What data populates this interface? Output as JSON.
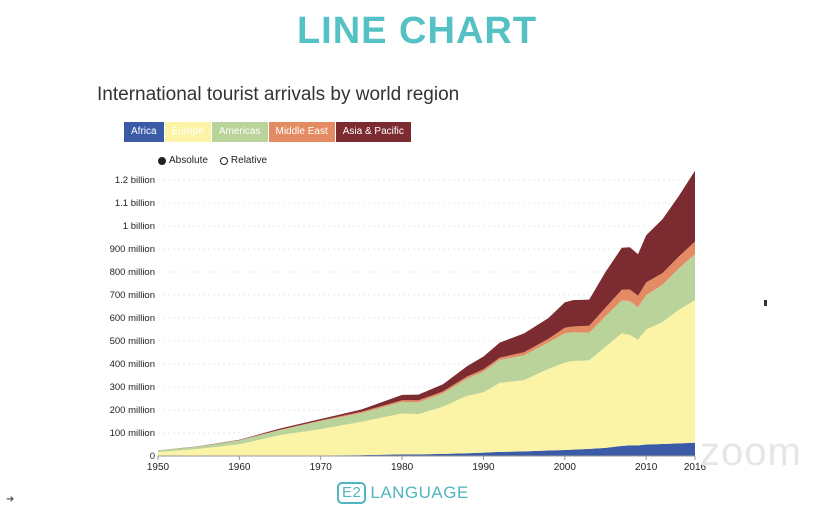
{
  "slide": {
    "title": "LINE CHART",
    "footer_mark": "E2",
    "footer_text": "LANGUAGE",
    "watermark": "zoom"
  },
  "controls": {
    "absolute_label": "Absolute",
    "relative_label": "Relative",
    "selected_mode": "Absolute"
  },
  "chart_data": {
    "type": "area",
    "stacked": true,
    "title": "International tourist arrivals by world region",
    "legend_position": "top-left",
    "grid": true,
    "x": [
      1950,
      1955,
      1960,
      1965,
      1970,
      1975,
      1980,
      1982,
      1985,
      1988,
      1990,
      1992,
      1995,
      1998,
      2000,
      2001,
      2003,
      2005,
      2007,
      2008,
      2009,
      2010,
      2012,
      2014,
      2016
    ],
    "xlim": [
      1950,
      2016
    ],
    "ylim": [
      0,
      1200000000
    ],
    "x_ticks": [
      {
        "value": 1950,
        "label": "1950"
      },
      {
        "value": 1960,
        "label": "1960"
      },
      {
        "value": 1970,
        "label": "1970"
      },
      {
        "value": 1980,
        "label": "1980"
      },
      {
        "value": 1990,
        "label": "1990"
      },
      {
        "value": 2000,
        "label": "2000"
      },
      {
        "value": 2010,
        "label": "2010"
      },
      {
        "value": 2016,
        "label": "2016"
      }
    ],
    "y_ticks": [
      {
        "value": 0,
        "label": "0"
      },
      {
        "value": 100000000,
        "label": "100 million"
      },
      {
        "value": 200000000,
        "label": "200 million"
      },
      {
        "value": 300000000,
        "label": "300 million"
      },
      {
        "value": 400000000,
        "label": "400 million"
      },
      {
        "value": 500000000,
        "label": "500 million"
      },
      {
        "value": 600000000,
        "label": "600 million"
      },
      {
        "value": 700000000,
        "label": "700 million"
      },
      {
        "value": 800000000,
        "label": "800 million"
      },
      {
        "value": 900000000,
        "label": "900 million"
      },
      {
        "value": 1000000000,
        "label": "1 billion"
      },
      {
        "value": 1100000000,
        "label": "1.1 billion"
      },
      {
        "value": 1200000000,
        "label": "1.2 billion"
      }
    ],
    "series": [
      {
        "name": "Africa",
        "color": "#3b5ba7",
        "values": [
          500000,
          800000,
          1000000,
          1500000,
          2000000,
          4000000,
          7000000,
          7000000,
          9000000,
          12000000,
          15000000,
          18000000,
          20000000,
          24000000,
          26000000,
          28000000,
          31000000,
          35000000,
          44000000,
          46000000,
          46000000,
          50000000,
          52000000,
          55000000,
          58000000
        ]
      },
      {
        "name": "Europe",
        "color": "#fbf3a6",
        "values": [
          16500000,
          30000000,
          50000000,
          90000000,
          115000000,
          145000000,
          178000000,
          175000000,
          205000000,
          250000000,
          262000000,
          300000000,
          310000000,
          355000000,
          380000000,
          385000000,
          385000000,
          440000000,
          490000000,
          480000000,
          460000000,
          500000000,
          530000000,
          580000000,
          620000000
        ]
      },
      {
        "name": "Americas",
        "color": "#b9d39a",
        "values": [
          7500000,
          10000000,
          17000000,
          21000000,
          35000000,
          38000000,
          50000000,
          52000000,
          58000000,
          75000000,
          90000000,
          100000000,
          108000000,
          115000000,
          128000000,
          125000000,
          120000000,
          133000000,
          143000000,
          147000000,
          141000000,
          150000000,
          163000000,
          180000000,
          200000000
        ]
      },
      {
        "name": "Middle East",
        "color": "#e58b63",
        "values": [
          200000,
          500000,
          1000000,
          2000000,
          3000000,
          5000000,
          7500000,
          8000000,
          8500000,
          9000000,
          9500000,
          10000000,
          13000000,
          16000000,
          24000000,
          25000000,
          30000000,
          37000000,
          46000000,
          51000000,
          50000000,
          55000000,
          50000000,
          52000000,
          54000000
        ]
      },
      {
        "name": "Asia & Pacific",
        "color": "#7c2c31",
        "values": [
          300000,
          1000000,
          1500000,
          5000000,
          6000000,
          10000000,
          23000000,
          25000000,
          31000000,
          45000000,
          56000000,
          65000000,
          82000000,
          90000000,
          110000000,
          115000000,
          114000000,
          155000000,
          182000000,
          184000000,
          180000000,
          205000000,
          234000000,
          263000000,
          308000000
        ]
      }
    ]
  }
}
